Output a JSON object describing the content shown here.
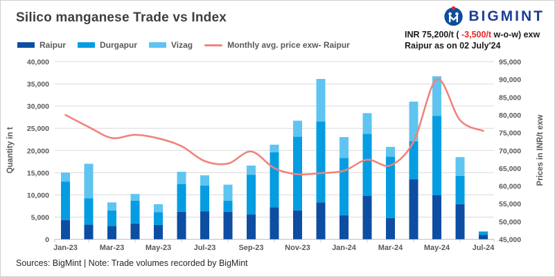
{
  "header": {
    "title": "Silico manganese Trade vs Index",
    "logo_text": "BIGMINT",
    "annotation": {
      "line1_prefix": "INR 75,200/t ( ",
      "line1_change": "-3,500/t",
      "line1_suffix": " w-o-w) exw",
      "line2": "Raipur as on 02 July'24"
    }
  },
  "footer": {
    "text": "Sources: BigMint | Note: Trade volumes recorded by BigMint"
  },
  "colors": {
    "raipur": "#0d4ea2",
    "durgapur": "#049de2",
    "vizag": "#5fc4f0",
    "price_line": "#f0837b",
    "grid": "#d9d9d9",
    "axis": "#bfbfbf",
    "tick_text": "#595959",
    "logo_navy": "#1c3f94",
    "logo_blue": "#0f4d9c",
    "logo_red": "#e8252a"
  },
  "chart_data": {
    "type": "bar+line",
    "title": "Silico manganese Trade vs Index",
    "categories": [
      "Jan-23",
      "Feb-23",
      "Mar-23",
      "Apr-23",
      "May-23",
      "Jun-23",
      "Jul-23",
      "Aug-23",
      "Sep-23",
      "Oct-23",
      "Nov-23",
      "Dec-23",
      "Jan-24",
      "Feb-24",
      "Mar-24",
      "Apr-24",
      "May-24",
      "Jun-24",
      "Jul-24"
    ],
    "x_tick_labels": [
      "Jan-23",
      "Mar-23",
      "May-23",
      "Jul-23",
      "Sep-23",
      "Nov-23",
      "Jan-24",
      "Mar-24",
      "May-24",
      "Jul-24"
    ],
    "series": [
      {
        "name": "Raipur",
        "values": [
          4300,
          3300,
          3000,
          3500,
          3200,
          6200,
          6300,
          6200,
          5600,
          7200,
          6500,
          8300,
          5400,
          9800,
          4800,
          13500,
          9900,
          7900,
          1000
        ]
      },
      {
        "name": "Durgapur",
        "values": [
          8700,
          5900,
          3500,
          5200,
          2900,
          6200,
          5800,
          2500,
          8900,
          12400,
          16600,
          18200,
          12900,
          13900,
          13800,
          8600,
          17900,
          6400,
          700
        ]
      },
      {
        "name": "Vizag",
        "values": [
          2000,
          7800,
          1800,
          1500,
          1800,
          2800,
          2300,
          3600,
          2100,
          1700,
          3600,
          9600,
          4700,
          4700,
          2200,
          8900,
          8900,
          4200,
          100
        ]
      }
    ],
    "line_series": {
      "name": "Monthly avg. price exw- Raipur",
      "values": [
        80000,
        76600,
        73500,
        74400,
        73400,
        71200,
        67000,
        66300,
        69700,
        65000,
        63300,
        63600,
        64300,
        67400,
        65800,
        72500,
        90000,
        78500,
        75500
      ]
    },
    "left_axis": {
      "label": "Quantity in t",
      "min": 0,
      "max": 40000,
      "step": 5000
    },
    "right_axis": {
      "label": "Prices in INR/t exw",
      "min": 45000,
      "max": 95000,
      "step": 5000
    },
    "legend": [
      {
        "label": "Raipur"
      },
      {
        "label": "Durgapur"
      },
      {
        "label": "Vizag"
      },
      {
        "label": "Monthly avg. price exw- Raipur"
      }
    ],
    "grid": true,
    "legend_position": "top-left"
  }
}
